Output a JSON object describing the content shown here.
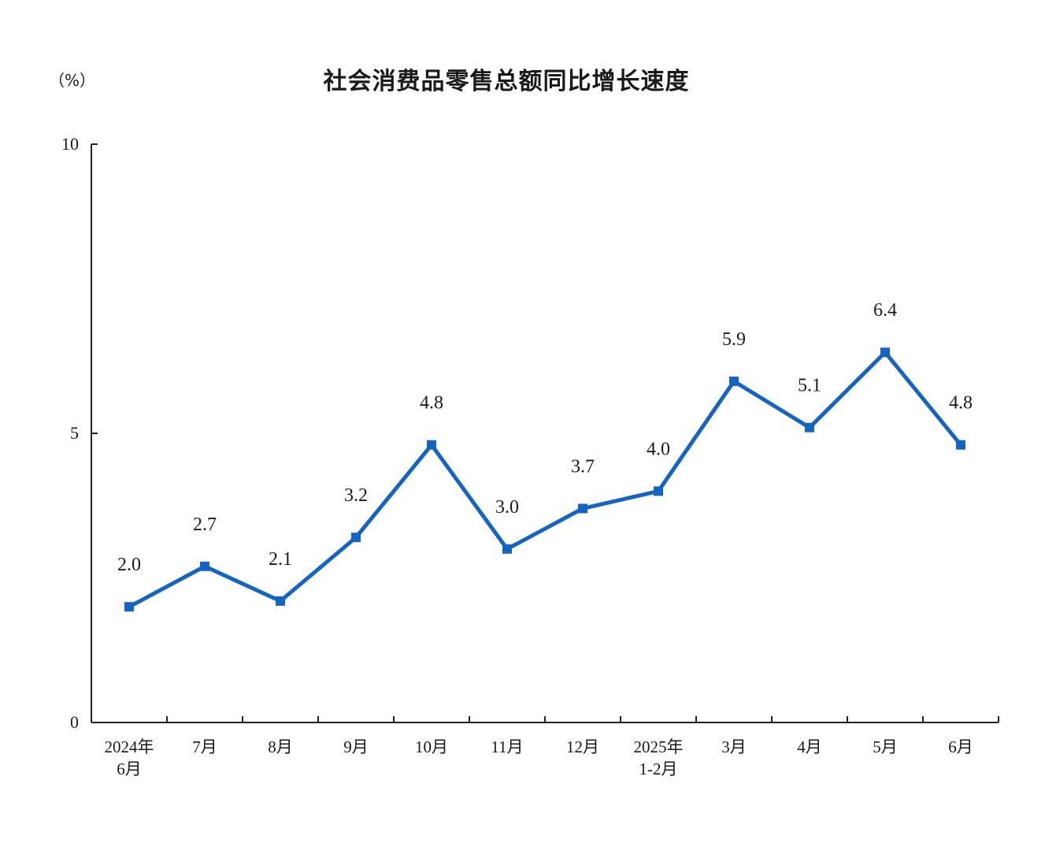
{
  "chart_data": {
    "type": "line",
    "title": "社会消费品零售总额同比增长速度",
    "unit": "（%）",
    "categories": [
      [
        "2024年",
        "6月"
      ],
      [
        "7月"
      ],
      [
        "8月"
      ],
      [
        "9月"
      ],
      [
        "10月"
      ],
      [
        "11月"
      ],
      [
        "12月"
      ],
      [
        "2025年",
        "1-2月"
      ],
      [
        "3月"
      ],
      [
        "4月"
      ],
      [
        "5月"
      ],
      [
        "6月"
      ]
    ],
    "values": [
      2.0,
      2.7,
      2.1,
      3.2,
      4.8,
      3.0,
      3.7,
      4.0,
      5.9,
      5.1,
      6.4,
      4.8
    ],
    "data_labels": [
      "2.0",
      "2.7",
      "2.1",
      "3.2",
      "4.8",
      "3.0",
      "3.7",
      "4.0",
      "5.9",
      "5.1",
      "6.4",
      "4.8"
    ],
    "ylim": [
      0,
      10
    ],
    "yticks": [
      0,
      5,
      10
    ],
    "ytick_labels": [
      "0",
      "5",
      "10"
    ],
    "grid": false,
    "legend": "none",
    "line_color": "#1565c0",
    "marker": "square"
  }
}
